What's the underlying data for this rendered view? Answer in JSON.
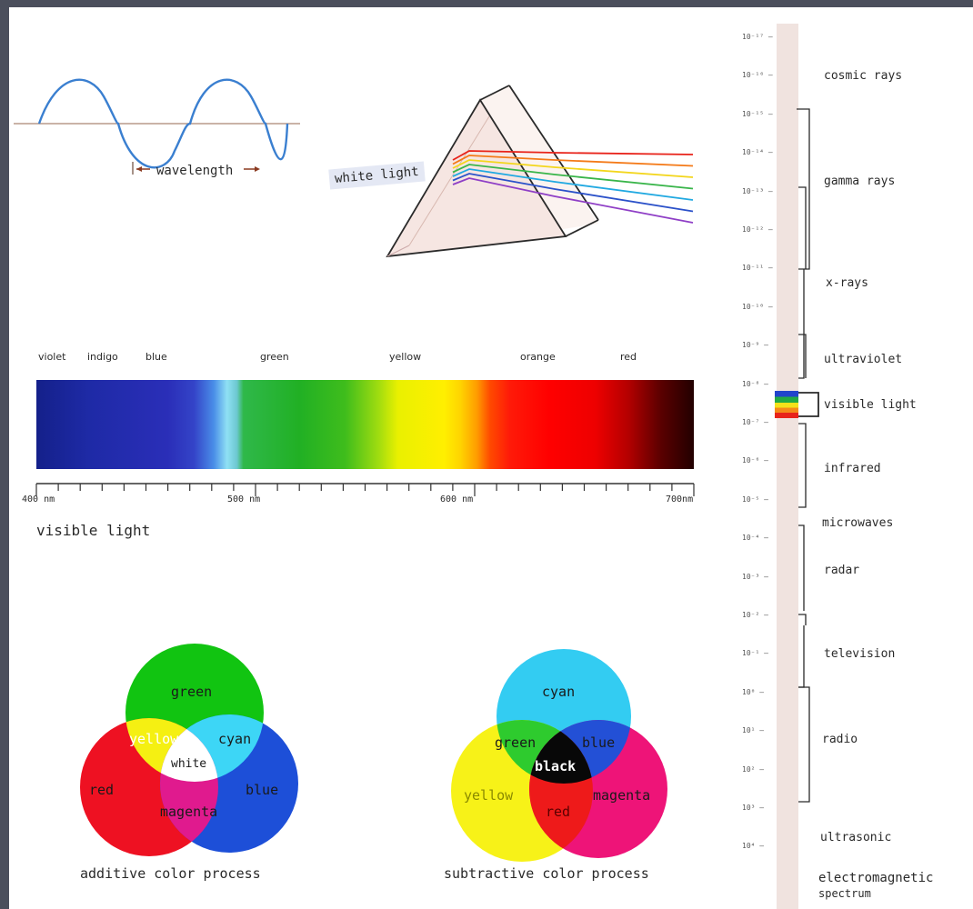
{
  "colors": {
    "background": "#4b4f5c",
    "paper": "#ffffff",
    "wave": "#3a7fd0",
    "em_column": "#f0e3df",
    "prism_outline": "#2a2a2a",
    "additive_green": "#11c411",
    "additive_red": "#ee1122",
    "additive_blue": "#1d4fd8",
    "subtractive_cyan": "#33ccf2",
    "subtractive_yellow": "#f7f218",
    "subtractive_magenta": "#ee1478"
  },
  "wave": {
    "label": "wavelength"
  },
  "prism": {
    "label": "white light",
    "rays": [
      "#e8231a",
      "#f47a18",
      "#f3d61c",
      "#39b54a",
      "#21a9e1",
      "#2b51c9",
      "#8f3fc6"
    ]
  },
  "spectrum": {
    "color_names": [
      "violet",
      "indigo",
      "blue",
      "green",
      "yellow",
      "orange",
      "red"
    ],
    "ticks": [
      "400 nm",
      "500 nm",
      "600 nm",
      "700nm"
    ],
    "caption": "visible light"
  },
  "additive": {
    "circles": {
      "top": "green",
      "left": "red",
      "right": "blue"
    },
    "overlaps": {
      "left": "yellow",
      "right": "cyan",
      "bottom": "magenta",
      "center": "white"
    },
    "caption": "additive color process"
  },
  "subtractive": {
    "circles": {
      "top": "cyan",
      "left": "yellow",
      "right": "magenta"
    },
    "overlaps": {
      "left": "green",
      "right": "blue",
      "bottom": "red",
      "center": "black"
    },
    "caption": "subtractive color process"
  },
  "em": {
    "exponents": [
      "10⁻¹⁷",
      "10⁻¹⁶",
      "10⁻¹⁵",
      "10⁻¹⁴",
      "10⁻¹³",
      "10⁻¹²",
      "10⁻¹¹",
      "10⁻¹⁰",
      "10⁻⁹",
      "10⁻⁸",
      "10⁻⁷",
      "10⁻⁶",
      "10⁻⁵",
      "10⁻⁴",
      "10⁻³",
      "10⁻²",
      "10⁻¹",
      "10⁰",
      "10¹",
      "10²",
      "10³",
      "10⁴"
    ],
    "bands": [
      "cosmic rays",
      "gamma rays",
      "x-rays",
      "ultraviolet",
      "visible light",
      "infrared",
      "microwaves",
      "radar",
      "television",
      "radio",
      "ultrasonic"
    ],
    "caption_line1": "electromagnetic",
    "caption_line2": "spectrum"
  }
}
